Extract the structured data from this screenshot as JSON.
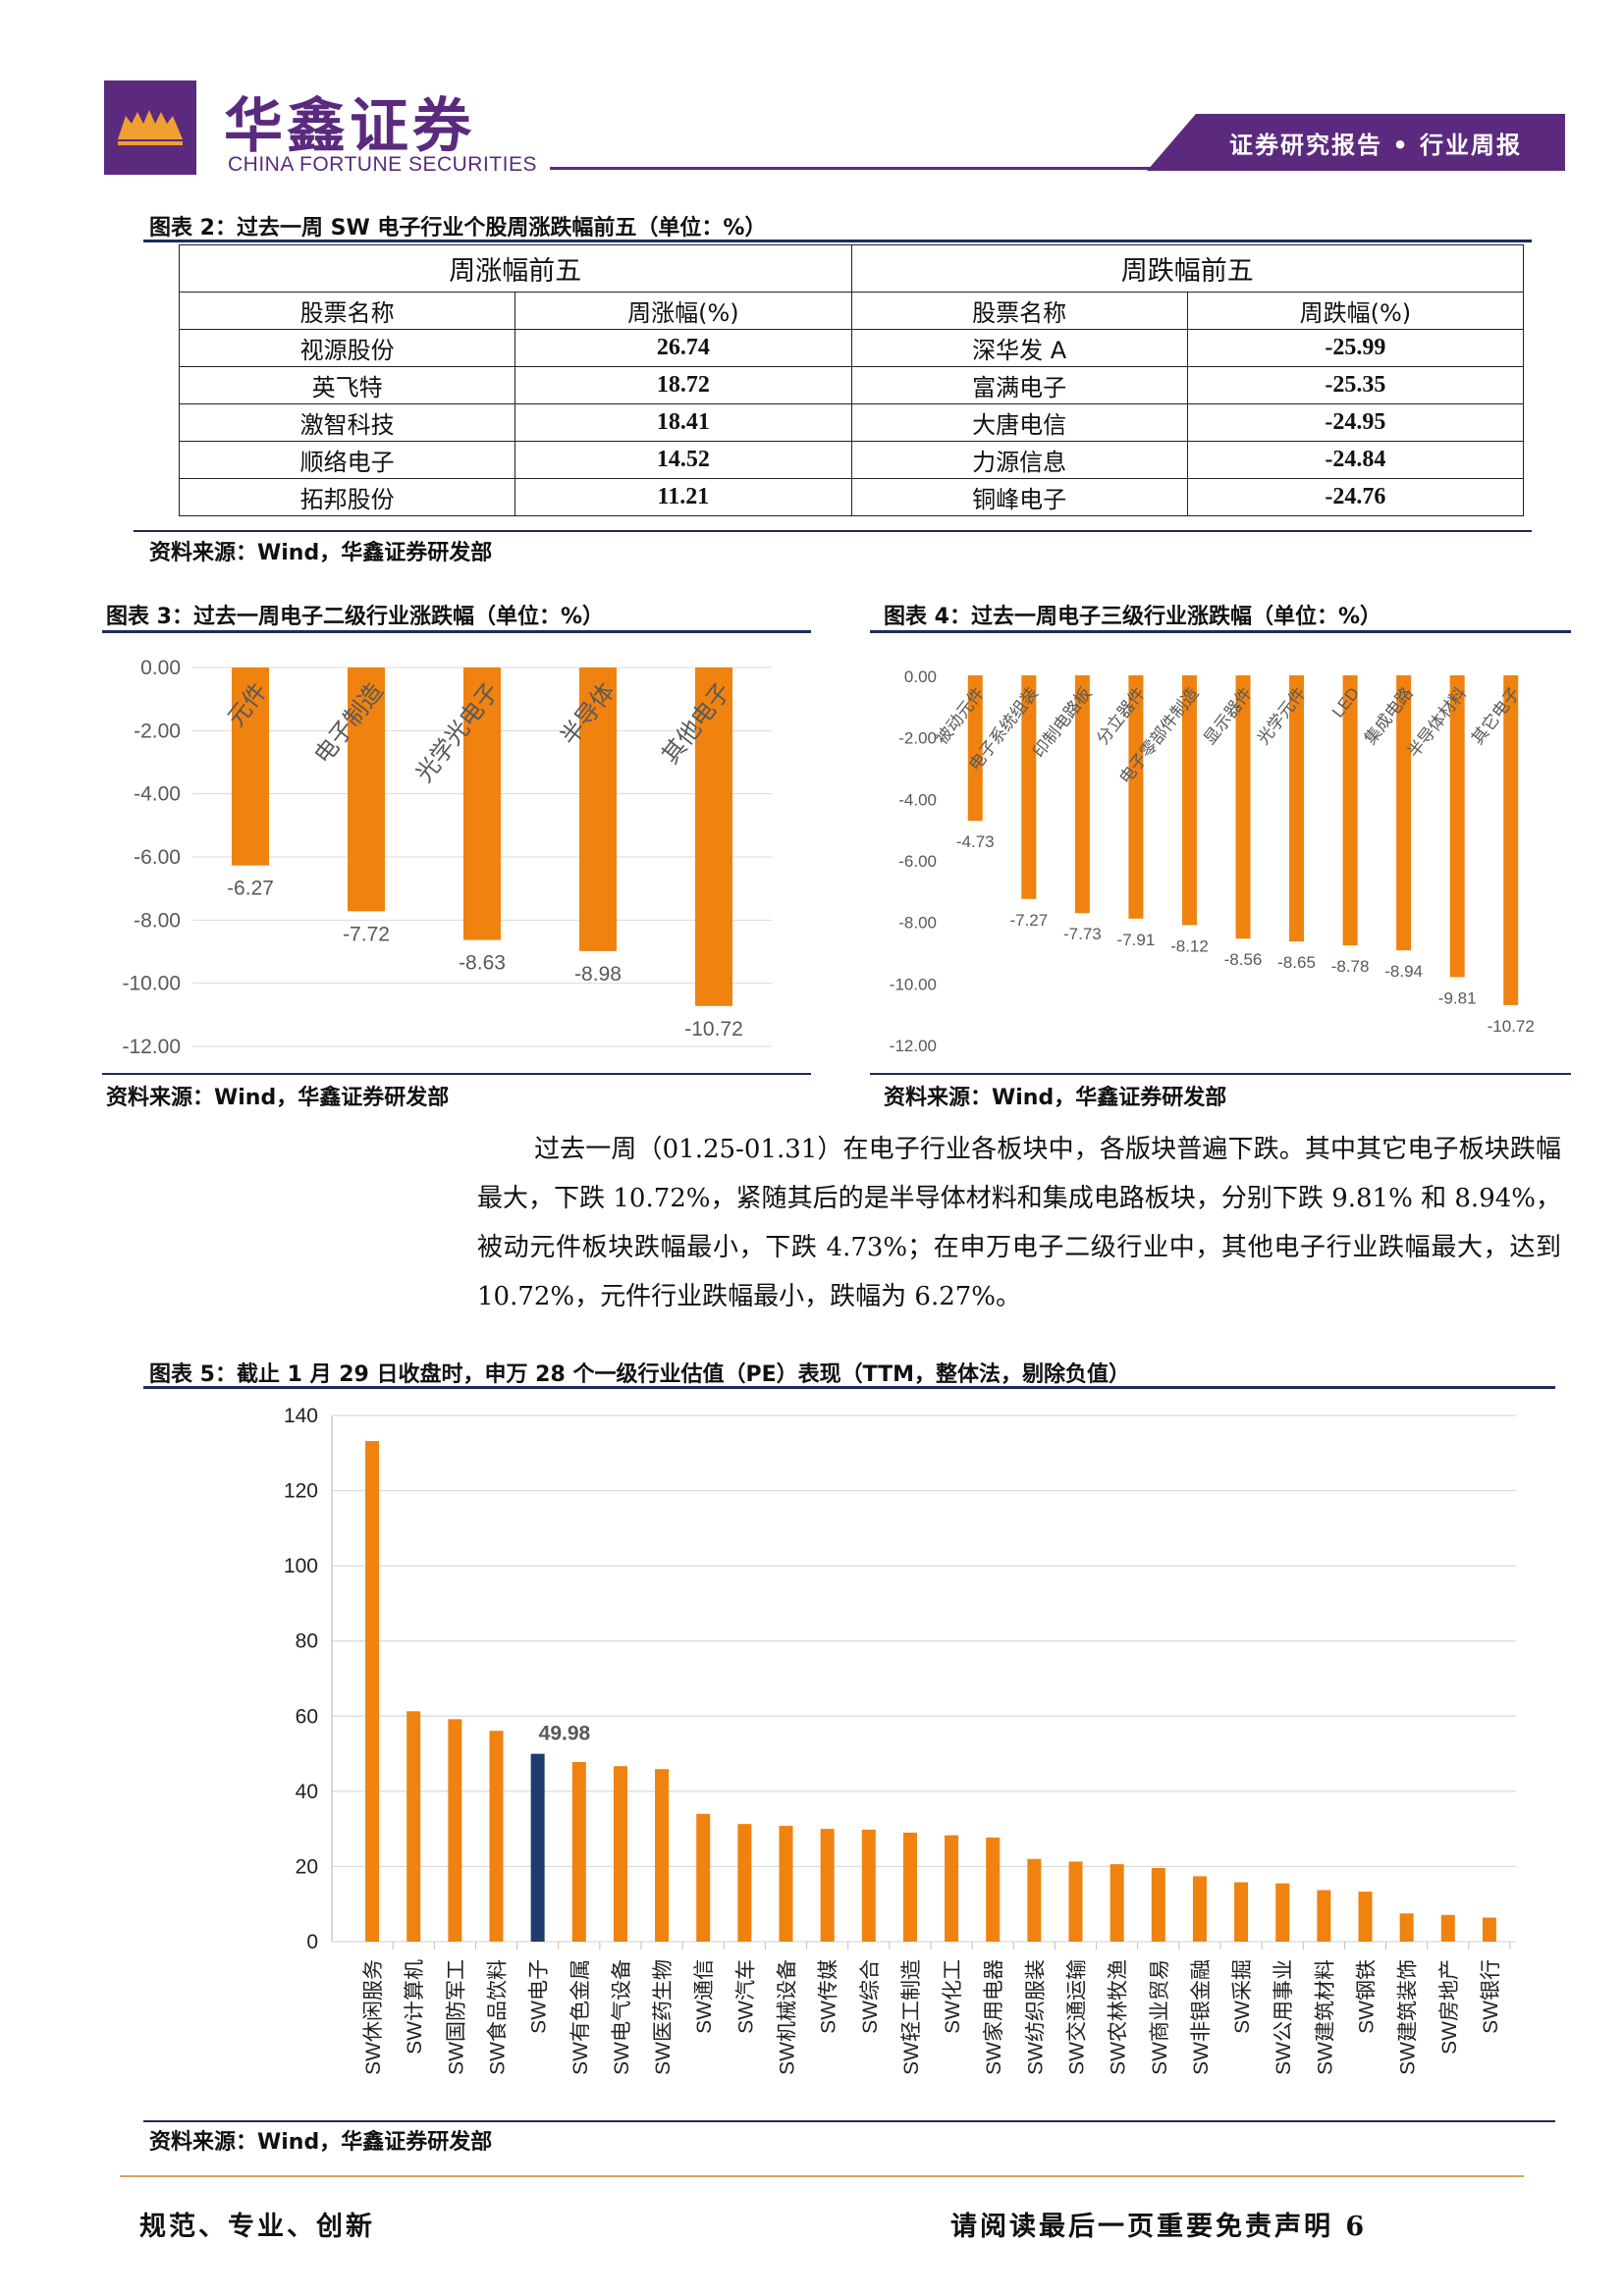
{
  "header": {
    "brand_cn": "华鑫证券",
    "brand_en": "CHINA FORTUNE SECURITIES",
    "banner": "证券研究报告 • 行业周报",
    "colors": {
      "brand": "#5b2a7e",
      "accent": "#f0820f",
      "navy": "#1f2a5c",
      "gold": "#d4a45b"
    }
  },
  "table_fig": {
    "caption": "图表 2：过去一周 SW 电子行业个股周涨跌幅前五（单位：%）",
    "gain_group": "周涨幅前五",
    "loss_group": "周跌幅前五",
    "headers": [
      "股票名称",
      "周涨幅(%)",
      "股票名称",
      "周跌幅(%)"
    ],
    "rows": [
      [
        "视源股份",
        "26.74",
        "深华发 A",
        "-25.99"
      ],
      [
        "英飞特",
        "18.72",
        "富满电子",
        "-25.35"
      ],
      [
        "激智科技",
        "18.41",
        "大唐电信",
        "-24.95"
      ],
      [
        "顺络电子",
        "14.52",
        "力源信息",
        "-24.84"
      ],
      [
        "拓邦股份",
        "11.21",
        "铜峰电子",
        "-24.76"
      ]
    ],
    "source": "资料来源：Wind，华鑫证券研发部"
  },
  "fig3": {
    "caption": "图表 3：过去一周电子二级行业涨跌幅（单位：%）",
    "source": "资料来源：Wind，华鑫证券研发部"
  },
  "fig4": {
    "caption": "图表 4：过去一周电子三级行业涨跌幅（单位：%）",
    "source": "资料来源：Wind，华鑫证券研发部"
  },
  "paragraph": "过去一周（01.25-01.31）在电子行业各板块中，各版块普遍下跌。其中其它电子板块跌幅最大，下跌 10.72%，紧随其后的是半导体材料和集成电路板块，分别下跌 9.81% 和 8.94%，被动元件板块跌幅最小，下跌 4.73%；在申万电子二级行业中，其他电子行业跌幅最大，达到 10.72%，元件行业跌幅最小，跌幅为 6.27%。",
  "fig5": {
    "caption": "图表 5：截止 1 月 29 日收盘时，申万 28 个一级行业估值（PE）表现（TTM，整体法，剔除负值）",
    "source": "资料来源：Wind，华鑫证券研发部"
  },
  "chart_data": [
    {
      "type": "bar",
      "id": "fig3",
      "categories": [
        "元件",
        "电子制造",
        "光学光电子",
        "半导体",
        "其他电子"
      ],
      "values": [
        -6.27,
        -7.72,
        -8.63,
        -8.98,
        -10.72
      ],
      "value_labels": [
        "-6.27",
        "-7.72",
        "-8.63",
        "-8.98",
        "-10.72"
      ],
      "ylim": [
        -12,
        0
      ],
      "yticks": [
        "0.00",
        "-2.00",
        "-4.00",
        "-6.00",
        "-8.00",
        "-10.00",
        "-12.00"
      ],
      "color": "#f0820f",
      "grid": true
    },
    {
      "type": "bar",
      "id": "fig4",
      "categories": [
        "被动元件",
        "电子系统组装",
        "印制电路板",
        "分立器件",
        "电子零部件制造",
        "显示器件",
        "光学元件",
        "LED",
        "集成电路",
        "半导体材料",
        "其它电子"
      ],
      "values": [
        -4.73,
        -7.27,
        -7.73,
        -7.91,
        -8.12,
        -8.56,
        -8.65,
        -8.78,
        -8.94,
        -9.81,
        -10.72
      ],
      "value_labels": [
        "-4.73",
        "-7.27",
        "-7.73",
        "-7.91",
        "-8.12",
        "-8.56",
        "-8.65",
        "-8.78",
        "-8.94",
        "-9.81",
        "-10.72"
      ],
      "ylim": [
        -12,
        0
      ],
      "yticks": [
        "0.00",
        "-2.00",
        "-4.00",
        "-6.00",
        "-8.00",
        "-10.00",
        "-12.00"
      ],
      "color": "#f0820f",
      "grid": false
    },
    {
      "type": "bar",
      "id": "fig5",
      "categories": [
        "SW休闲服务",
        "SW计算机",
        "SW国防军工",
        "SW食品饮料",
        "SW电子",
        "SW有色金属",
        "SW电气设备",
        "SW医药生物",
        "SW通信",
        "SW汽车",
        "SW机械设备",
        "SW传媒",
        "SW综合",
        "SW轻工制造",
        "SW化工",
        "SW家用电器",
        "SW纺织服装",
        "SW交通运输",
        "SW农林牧渔",
        "SW商业贸易",
        "SW非银金融",
        "SW采掘",
        "SW公用事业",
        "SW建筑材料",
        "SW钢铁",
        "SW建筑装饰",
        "SW房地产",
        "SW银行"
      ],
      "values": [
        133.2,
        61.3,
        59.2,
        56.1,
        49.98,
        47.8,
        46.7,
        45.9,
        34.0,
        31.3,
        30.8,
        30.0,
        29.8,
        29.0,
        28.3,
        27.7,
        22.0,
        21.3,
        20.6,
        19.6,
        17.4,
        15.8,
        15.5,
        13.7,
        13.3,
        7.5,
        7.1,
        6.4
      ],
      "highlight": {
        "category": "SW电子",
        "label": "49.98",
        "color": "#1f3a6e"
      },
      "ylim": [
        0,
        140
      ],
      "yticks": [
        "0",
        "20",
        "40",
        "60",
        "80",
        "100",
        "120",
        "140"
      ],
      "color": "#f0820f",
      "grid": true
    }
  ],
  "footer": {
    "left": "规范、专业、创新",
    "right": "请阅读最后一页重要免责声明 6"
  }
}
